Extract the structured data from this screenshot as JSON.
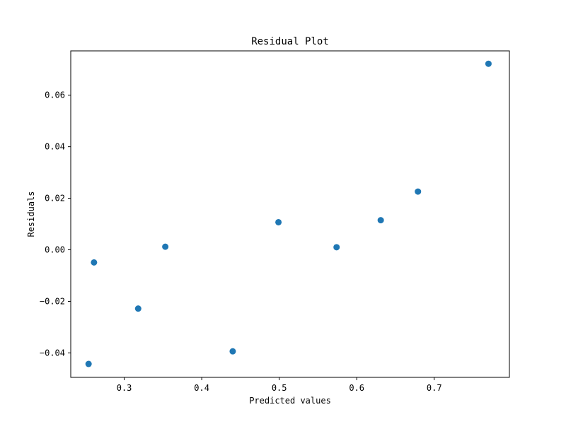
{
  "chart_data": {
    "type": "scatter",
    "title": "Residual Plot",
    "xlabel": "Predicted values",
    "ylabel": "Residuals",
    "xlim": [
      0.231,
      0.797
    ],
    "ylim": [
      -0.0495,
      0.0772
    ],
    "xticks": [
      0.3,
      0.4,
      0.5,
      0.6,
      0.7
    ],
    "xtick_labels": [
      "0.3",
      "0.4",
      "0.5",
      "0.6",
      "0.7"
    ],
    "yticks": [
      -0.04,
      -0.02,
      0.0,
      0.02,
      0.04,
      0.06
    ],
    "ytick_labels": [
      "−0.04",
      "−0.02",
      "0.00",
      "0.02",
      "0.04",
      "0.06"
    ],
    "grid": false,
    "marker_color": "#1f77b4",
    "points": [
      {
        "x": 0.254,
        "y": -0.0443
      },
      {
        "x": 0.261,
        "y": -0.0049
      },
      {
        "x": 0.318,
        "y": -0.0228
      },
      {
        "x": 0.353,
        "y": 0.0012
      },
      {
        "x": 0.44,
        "y": -0.0394
      },
      {
        "x": 0.499,
        "y": 0.0107
      },
      {
        "x": 0.574,
        "y": 0.001
      },
      {
        "x": 0.631,
        "y": 0.0115
      },
      {
        "x": 0.679,
        "y": 0.0226
      },
      {
        "x": 0.77,
        "y": 0.0722
      }
    ]
  }
}
